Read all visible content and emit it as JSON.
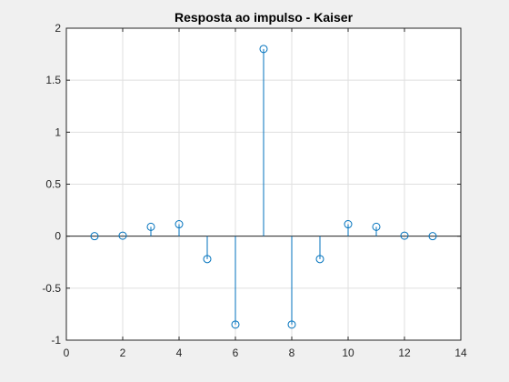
{
  "chart_data": {
    "type": "stem",
    "title": "Resposta ao impulso - Kaiser",
    "xlabel": "",
    "ylabel": "",
    "xlim": [
      0,
      14
    ],
    "ylim": [
      -1,
      2
    ],
    "xticks": [
      0,
      2,
      4,
      6,
      8,
      10,
      12,
      14
    ],
    "yticks": [
      -1,
      -0.5,
      0,
      0.5,
      1,
      1.5,
      2
    ],
    "grid": true,
    "color": "#0072bd",
    "x": [
      1,
      2,
      3,
      4,
      5,
      6,
      7,
      8,
      9,
      10,
      11,
      12,
      13
    ],
    "y": [
      0,
      0.005,
      0.09,
      0.115,
      -0.22,
      -0.85,
      1.8,
      -0.85,
      -0.22,
      0.115,
      0.09,
      0.005,
      0
    ]
  }
}
